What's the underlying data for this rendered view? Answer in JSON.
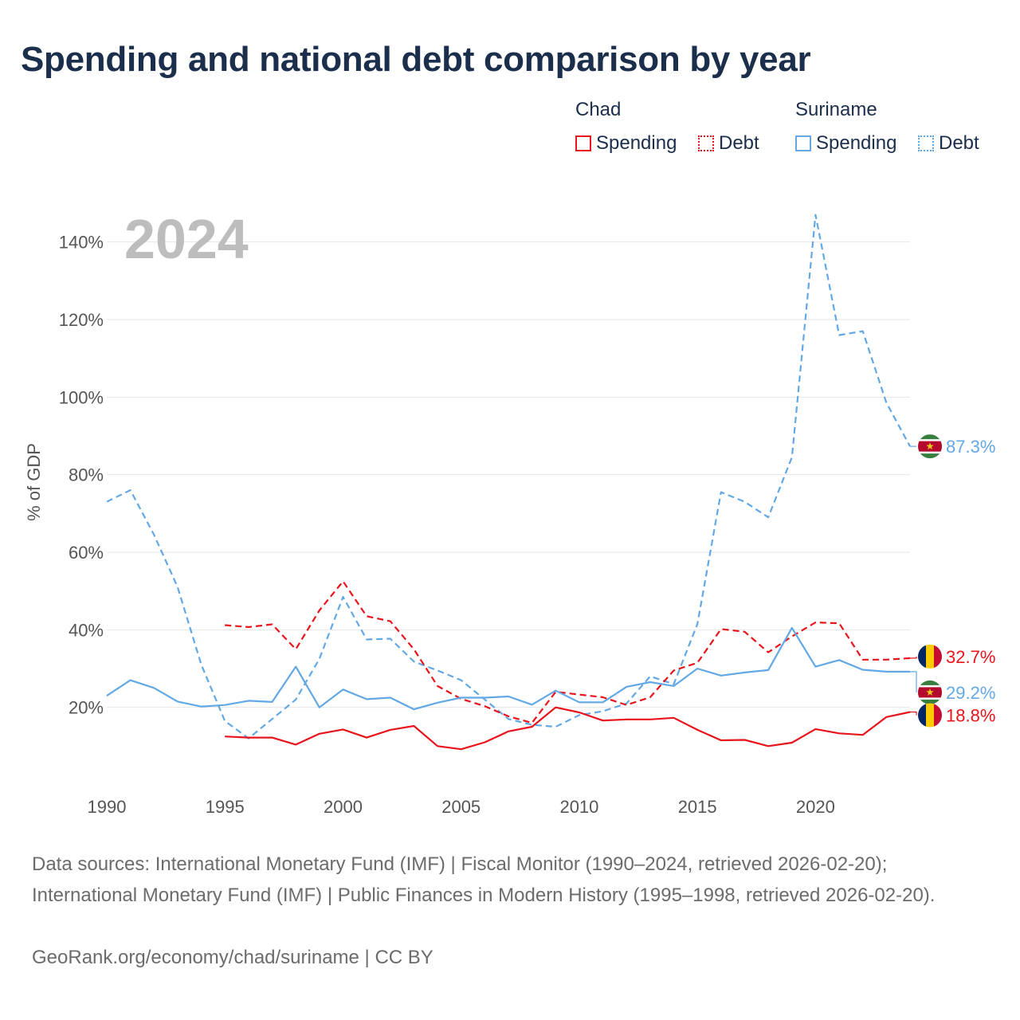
{
  "title": "Spending and national debt comparison by year",
  "legend": {
    "chad": {
      "name": "Chad",
      "spending": "Spending",
      "debt": "Debt"
    },
    "suriname": {
      "name": "Suriname",
      "spending": "Spending",
      "debt": "Debt"
    }
  },
  "colors": {
    "chad": "#e8141c",
    "suriname": "#62a8e5"
  },
  "current_year": "2024",
  "footer": {
    "sources": "Data sources: International Monetary Fund (IMF) | Fiscal Monitor (1990–2024, retrieved 2026-02-20); International Monetary Fund (IMF) | Public Finances in Modern History (1995–1998, retrieved 2026-02-20).",
    "credit": "GeoRank.org/economy/chad/suriname | CC BY"
  },
  "chart_data": {
    "type": "line",
    "ylabel": "% of GDP",
    "xlim": [
      1990,
      2024
    ],
    "ylim": [
      0,
      150
    ],
    "x_ticks": [
      1990,
      1995,
      2000,
      2005,
      2010,
      2015,
      2020
    ],
    "y_ticks": [
      20,
      40,
      60,
      80,
      100,
      120,
      140
    ],
    "y_tick_labels": [
      "20%",
      "40%",
      "60%",
      "80%",
      "100%",
      "120%",
      "140%"
    ],
    "series": [
      {
        "key": "suriname_debt",
        "name": "Suriname Debt",
        "country": "suriname",
        "style": "dashed",
        "end_label": "87.3%",
        "x": [
          1990,
          1991,
          1992,
          1993,
          1994,
          1995,
          1996,
          1997,
          1998,
          1999,
          2000,
          2001,
          2002,
          2003,
          2004,
          2005,
          2006,
          2007,
          2008,
          2009,
          2010,
          2011,
          2012,
          2013,
          2014,
          2015,
          2016,
          2017,
          2018,
          2019,
          2020,
          2021,
          2022,
          2023,
          2024
        ],
        "values": [
          73,
          76,
          64.5,
          51,
          31,
          16.5,
          12,
          17,
          22,
          32.5,
          48.5,
          37.5,
          37.7,
          31.8,
          29.5,
          27,
          22,
          17,
          15.5,
          15,
          18,
          19,
          21,
          28,
          26,
          41.5,
          75.5,
          73,
          69,
          84.5,
          147,
          116,
          117,
          98.5,
          87.3
        ]
      },
      {
        "key": "chad_debt",
        "name": "Chad Debt",
        "country": "chad",
        "style": "dashed",
        "end_label": "32.7%",
        "x": [
          1995,
          1996,
          1997,
          1998,
          1999,
          2000,
          2001,
          2002,
          2003,
          2004,
          2005,
          2006,
          2007,
          2008,
          2009,
          2010,
          2011,
          2012,
          2013,
          2014,
          2015,
          2016,
          2017,
          2018,
          2019,
          2020,
          2021,
          2022,
          2023,
          2024
        ],
        "values": [
          41.2,
          40.7,
          41.4,
          35,
          45,
          52.5,
          43.5,
          42.2,
          35,
          25.5,
          22.2,
          20.3,
          17.7,
          16,
          24,
          23.3,
          22.6,
          20.6,
          22.6,
          29.5,
          31.5,
          40.2,
          39.5,
          34.2,
          38.3,
          41.9,
          41.7,
          32.3,
          32.3,
          32.7
        ]
      },
      {
        "key": "suriname_spending",
        "name": "Suriname Spending",
        "country": "suriname",
        "style": "solid",
        "end_label": "29.2%",
        "x": [
          1990,
          1991,
          1992,
          1993,
          1994,
          1995,
          1996,
          1997,
          1998,
          1999,
          2000,
          2001,
          2002,
          2003,
          2004,
          2005,
          2006,
          2007,
          2008,
          2009,
          2010,
          2011,
          2012,
          2013,
          2014,
          2015,
          2016,
          2017,
          2018,
          2019,
          2020,
          2021,
          2022,
          2023,
          2024
        ],
        "values": [
          23,
          27,
          25,
          21.5,
          20.2,
          20.6,
          21.7,
          21.4,
          30.5,
          20,
          24.6,
          22.1,
          22.5,
          19.5,
          21.2,
          22.5,
          22.5,
          22.8,
          20.7,
          24.3,
          21.3,
          21.3,
          25.3,
          26.5,
          25.5,
          30,
          28.2,
          29,
          29.6,
          40.5,
          30.5,
          32.2,
          29.7,
          29.2,
          29.2
        ]
      },
      {
        "key": "chad_spending",
        "name": "Chad Spending",
        "country": "chad",
        "style": "solid",
        "end_label": "18.8%",
        "x": [
          1995,
          1996,
          1997,
          1998,
          1999,
          2000,
          2001,
          2002,
          2003,
          2004,
          2005,
          2006,
          2007,
          2008,
          2009,
          2010,
          2011,
          2012,
          2013,
          2014,
          2015,
          2016,
          2017,
          2018,
          2019,
          2020,
          2021,
          2022,
          2023,
          2024
        ],
        "values": [
          12.5,
          12.2,
          12.2,
          10.4,
          13.2,
          14.3,
          12.2,
          14.2,
          15.2,
          10,
          9.2,
          11,
          13.8,
          15,
          20,
          18.7,
          16.6,
          16.9,
          16.9,
          17.3,
          14.2,
          11.5,
          11.6,
          10.0,
          10.9,
          14.4,
          13.3,
          12.9,
          17.5,
          18.8
        ]
      }
    ]
  }
}
